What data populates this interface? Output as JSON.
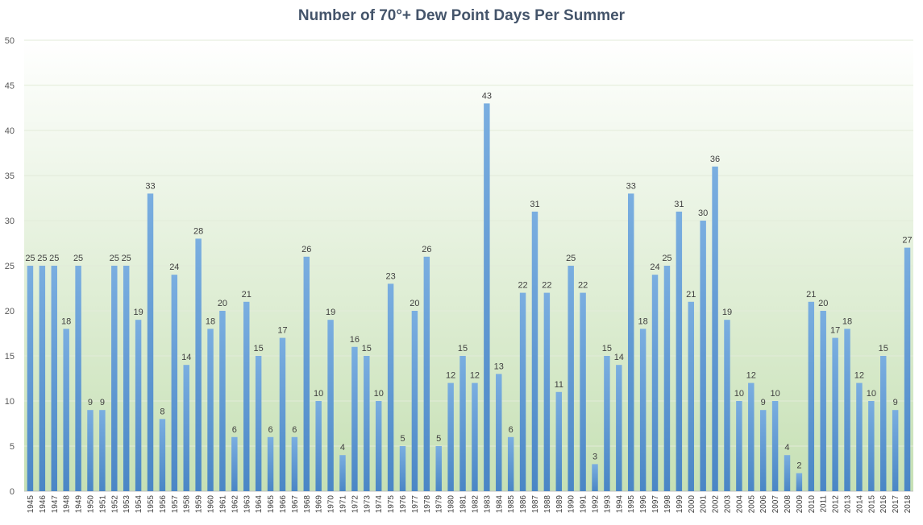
{
  "chart_data": {
    "type": "bar",
    "title": "Number of 70°+ Dew Point Days Per Summer",
    "xlabel": "",
    "ylabel": "",
    "ylim": [
      0,
      50
    ],
    "yticks": [
      0,
      5,
      10,
      15,
      20,
      25,
      30,
      35,
      40,
      45,
      50
    ],
    "grid": true,
    "legend": "none",
    "bar_color": "#5b9bd5",
    "background_gradient": [
      "#ffffff",
      "#c6e0b4"
    ],
    "categories": [
      "1945",
      "1946",
      "1947",
      "1948",
      "1949",
      "1950",
      "1951",
      "1952",
      "1953",
      "1954",
      "1955",
      "1956",
      "1957",
      "1958",
      "1959",
      "1960",
      "1961",
      "1962",
      "1963",
      "1964",
      "1965",
      "1966",
      "1967",
      "1968",
      "1969",
      "1970",
      "1971",
      "1972",
      "1973",
      "1974",
      "1975",
      "1976",
      "1977",
      "1978",
      "1979",
      "1980",
      "1981",
      "1982",
      "1983",
      "1984",
      "1985",
      "1986",
      "1987",
      "1988",
      "1989",
      "1990",
      "1991",
      "1992",
      "1993",
      "1994",
      "1995",
      "1996",
      "1997",
      "1998",
      "1999",
      "2000",
      "2001",
      "2002",
      "2003",
      "2004",
      "2005",
      "2006",
      "2007",
      "2008",
      "2009",
      "2010",
      "2011",
      "2012",
      "2013",
      "2014",
      "2015",
      "2016",
      "2017",
      "2018"
    ],
    "values": [
      25,
      25,
      25,
      18,
      25,
      9,
      9,
      25,
      25,
      19,
      33,
      8,
      24,
      14,
      28,
      18,
      20,
      6,
      21,
      15,
      6,
      17,
      6,
      26,
      10,
      19,
      4,
      16,
      15,
      10,
      23,
      5,
      20,
      26,
      5,
      12,
      15,
      12,
      43,
      13,
      6,
      22,
      31,
      22,
      11,
      25,
      22,
      3,
      15,
      14,
      33,
      18,
      24,
      25,
      31,
      21,
      30,
      36,
      19,
      10,
      12,
      9,
      10,
      4,
      2,
      21,
      20,
      17,
      18,
      12,
      10,
      15,
      9,
      27
    ],
    "data_labels": true
  }
}
